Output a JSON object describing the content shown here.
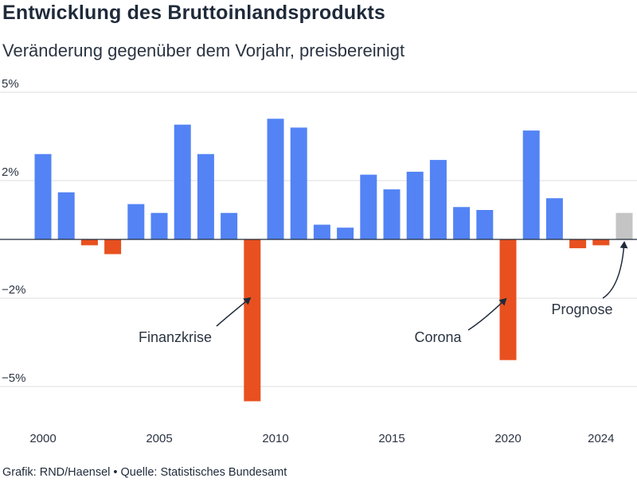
{
  "header": {
    "title": "Entwicklung des Bruttoinlandsprodukts",
    "subtitle": "Veränderung gegenüber dem Vorjahr, preisbereinigt"
  },
  "footer": {
    "credit": "Grafik: RND/Haensel • Quelle: Statistisches Bundesamt"
  },
  "colors": {
    "positive": "#5383f5",
    "negative": "#e8501f",
    "forecast": "#c4c4c4",
    "grid": "#dedede",
    "axis": "#1f2a3a"
  },
  "chart_data": {
    "type": "bar",
    "title": "Entwicklung des Bruttoinlandsprodukts",
    "subtitle": "Veränderung gegenüber dem Vorjahr, preisbereinigt",
    "xlabel": "",
    "ylabel": "",
    "ylim": [
      -5.5,
      5
    ],
    "grid": true,
    "y_ticks": [
      {
        "value": 5,
        "label": "5%"
      },
      {
        "value": 2,
        "label": "2%"
      },
      {
        "value": -2,
        "label": "−2%"
      },
      {
        "value": -5,
        "label": "−5%"
      }
    ],
    "x_tick_labels": [
      "2000",
      "2005",
      "2010",
      "2015",
      "2020",
      "2024"
    ],
    "categories": [
      2000,
      2001,
      2002,
      2003,
      2004,
      2005,
      2006,
      2007,
      2008,
      2009,
      2010,
      2011,
      2012,
      2013,
      2014,
      2015,
      2016,
      2017,
      2018,
      2019,
      2020,
      2021,
      2022,
      2023,
      2024,
      2025
    ],
    "values": [
      2.9,
      1.6,
      -0.2,
      -0.5,
      1.2,
      0.9,
      3.9,
      2.9,
      0.9,
      -5.5,
      4.1,
      3.8,
      0.5,
      0.4,
      2.2,
      1.7,
      2.3,
      2.7,
      1.1,
      1.0,
      -4.1,
      3.7,
      1.4,
      -0.3,
      -0.2,
      0.9
    ],
    "forecast_categories": [
      2025
    ],
    "annotations": [
      {
        "text": "Finanzkrise",
        "target": 2009
      },
      {
        "text": "Corona",
        "target": 2020
      },
      {
        "text": "Prognose",
        "target": 2025
      }
    ]
  }
}
